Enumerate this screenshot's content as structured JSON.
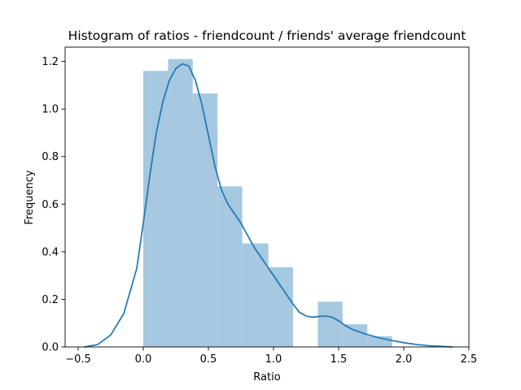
{
  "chart_data": {
    "type": "bar",
    "title": "Histogram of ratios - friendcount / friends' average friendcount",
    "xlabel": "Ratio",
    "ylabel": "Frequency",
    "xlim": [
      -0.6,
      2.5
    ],
    "ylim": [
      0.0,
      1.26
    ],
    "xticks": [
      -0.5,
      0.0,
      0.5,
      1.0,
      1.5,
      2.0,
      2.5
    ],
    "xtick_labels": [
      "−0.5",
      "0.0",
      "0.5",
      "1.0",
      "1.5",
      "2.0",
      "2.5"
    ],
    "yticks": [
      0.0,
      0.2,
      0.4,
      0.6,
      0.8,
      1.0,
      1.2
    ],
    "ytick_labels": [
      "0.0",
      "0.2",
      "0.4",
      "0.6",
      "0.8",
      "1.0",
      "1.2"
    ],
    "grid": false,
    "bar_color": "#a6c8e0",
    "line_color": "#1f77b4",
    "series": [
      {
        "type": "histogram",
        "bin_edges": [
          0.0,
          0.19,
          0.38,
          0.57,
          0.76,
          0.96,
          1.15,
          1.34,
          1.53,
          1.72,
          1.91
        ],
        "values": [
          1.16,
          1.21,
          1.065,
          0.675,
          0.435,
          0.335,
          0.0,
          0.19,
          0.095,
          0.045
        ]
      },
      {
        "type": "line",
        "x": [
          -0.45,
          -0.35,
          -0.25,
          -0.15,
          -0.05,
          0.0,
          0.05,
          0.1,
          0.15,
          0.2,
          0.25,
          0.3,
          0.35,
          0.4,
          0.45,
          0.5,
          0.55,
          0.6,
          0.65,
          0.7,
          0.75,
          0.8,
          0.85,
          0.9,
          0.95,
          1.0,
          1.05,
          1.1,
          1.15,
          1.2,
          1.25,
          1.3,
          1.35,
          1.4,
          1.45,
          1.5,
          1.55,
          1.6,
          1.65,
          1.7,
          1.8,
          1.9,
          2.0,
          2.1,
          2.2,
          2.3,
          2.37
        ],
        "y": [
          0.0,
          0.01,
          0.05,
          0.14,
          0.33,
          0.52,
          0.72,
          0.9,
          1.03,
          1.12,
          1.17,
          1.19,
          1.18,
          1.12,
          1.02,
          0.89,
          0.76,
          0.66,
          0.6,
          0.56,
          0.52,
          0.47,
          0.42,
          0.38,
          0.34,
          0.3,
          0.26,
          0.22,
          0.18,
          0.145,
          0.13,
          0.125,
          0.128,
          0.13,
          0.125,
          0.11,
          0.09,
          0.075,
          0.065,
          0.055,
          0.04,
          0.028,
          0.018,
          0.01,
          0.005,
          0.002,
          0.0
        ]
      }
    ]
  }
}
